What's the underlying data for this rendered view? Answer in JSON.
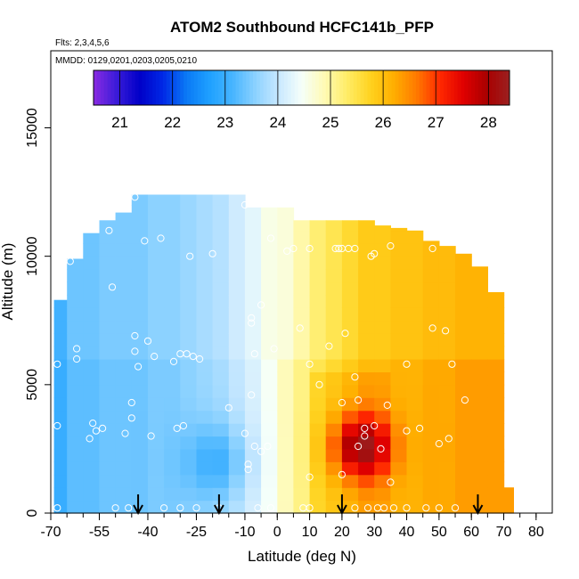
{
  "chart_data": {
    "type": "heatmap",
    "title": "ATOM2 Southbound HCFC141b_PFP",
    "subtitle_flights": "Flts: 2,3,4,5,6",
    "subtitle_dates": "MMDD: 0129,0201,0203,0205,0210",
    "xlabel": "Latitude (deg N)",
    "ylabel": "Altitude (m)",
    "xlim": [
      -70,
      85
    ],
    "ylim": [
      0,
      18000
    ],
    "x_ticks": [
      -70,
      -55,
      -40,
      -25,
      -10,
      0,
      10,
      20,
      30,
      40,
      50,
      60,
      70,
      80
    ],
    "y_ticks": [
      0,
      5000,
      10000,
      15000
    ],
    "colorbar": {
      "min": 20.5,
      "max": 28.4,
      "ticks": [
        21,
        22,
        23,
        24,
        25,
        26,
        27,
        28
      ],
      "colors": [
        "#8a2be2",
        "#3a1bd9",
        "#0000c8",
        "#0028e6",
        "#0a78f5",
        "#1ea0ff",
        "#46b4ff",
        "#8cd2ff",
        "#c8e8ff",
        "#f5fffa",
        "#fffab4",
        "#ffec64",
        "#ffd21e",
        "#ffae00",
        "#ff7800",
        "#ff2800",
        "#e00000",
        "#aa0000",
        "#9b2020"
      ]
    },
    "field_columns": [
      {
        "lat": -66.5,
        "top": 8300,
        "v": 23.0
      },
      {
        "lat": -62.5,
        "top": 9900,
        "v": 23.3
      },
      {
        "lat": -57.5,
        "top": 10900,
        "v": 23.3
      },
      {
        "lat": -52.5,
        "top": 11400,
        "v": 23.4
      },
      {
        "lat": -47.5,
        "top": 11700,
        "v": 23.4
      },
      {
        "lat": -42.5,
        "top": 12400,
        "v": 23.4
      },
      {
        "lat": -37.5,
        "top": 12400,
        "v": 23.5
      },
      {
        "lat": -32.5,
        "top": 12400,
        "v": 23.5
      },
      {
        "lat": -27.5,
        "top": 12400,
        "v": 23.6
      },
      {
        "lat": -22.5,
        "top": 12400,
        "v": 23.7
      },
      {
        "lat": -17.5,
        "top": 12400,
        "v": 23.8
      },
      {
        "lat": -12.5,
        "top": 12400,
        "v": 24.0
      },
      {
        "lat": -7.5,
        "top": 11900,
        "v": 24.2
      },
      {
        "lat": -2.5,
        "top": 11900,
        "v": 24.5
      },
      {
        "lat": 2.5,
        "top": 11900,
        "v": 24.8
      },
      {
        "lat": 7.5,
        "top": 11400,
        "v": 25.1
      },
      {
        "lat": 12.5,
        "top": 11400,
        "v": 25.4
      },
      {
        "lat": 17.5,
        "top": 11400,
        "v": 25.6
      },
      {
        "lat": 22.5,
        "top": 11400,
        "v": 25.8
      },
      {
        "lat": 27.5,
        "top": 11400,
        "v": 26.0
      },
      {
        "lat": 32.5,
        "top": 11200,
        "v": 26.0
      },
      {
        "lat": 37.5,
        "top": 11100,
        "v": 26.1
      },
      {
        "lat": 42.5,
        "top": 11000,
        "v": 26.1
      },
      {
        "lat": 47.5,
        "top": 10600,
        "v": 26.2
      },
      {
        "lat": 52.5,
        "top": 10400,
        "v": 26.2
      },
      {
        "lat": 57.5,
        "top": 10100,
        "v": 26.3
      },
      {
        "lat": 62.5,
        "top": 9600,
        "v": 26.3
      },
      {
        "lat": 67.5,
        "top": 8600,
        "v": 26.3
      },
      {
        "lat": 71.5,
        "top": 1000,
        "v": 26.3
      }
    ],
    "hotspot": {
      "lat": 26,
      "alt": 2600,
      "peak": 28.1
    },
    "coldspot": {
      "lat": -18,
      "alt": 2000,
      "min": 22.6
    },
    "samples": [
      [
        -68,
        200
      ],
      [
        -68,
        3400
      ],
      [
        -68,
        5800
      ],
      [
        -64,
        9800
      ],
      [
        -62,
        6400
      ],
      [
        -62,
        6000
      ],
      [
        -58,
        2900
      ],
      [
        -57,
        3500
      ],
      [
        -56,
        3200
      ],
      [
        -54,
        3300
      ],
      [
        -52,
        11000
      ],
      [
        -51,
        8800
      ],
      [
        -50,
        200
      ],
      [
        -47,
        3100
      ],
      [
        -46,
        200
      ],
      [
        -45,
        3700
      ],
      [
        -45,
        4300
      ],
      [
        -44,
        6300
      ],
      [
        -44,
        6900
      ],
      [
        -44,
        12300
      ],
      [
        -43,
        5700
      ],
      [
        -41,
        10600
      ],
      [
        -40,
        6700
      ],
      [
        -39,
        3000
      ],
      [
        -38,
        6100
      ],
      [
        -36,
        10700
      ],
      [
        -35,
        200
      ],
      [
        -32,
        5900
      ],
      [
        -31,
        3300
      ],
      [
        -30,
        6200
      ],
      [
        -30,
        200
      ],
      [
        -29,
        3400
      ],
      [
        -28,
        6200
      ],
      [
        -27,
        10000
      ],
      [
        -26,
        6100
      ],
      [
        -25,
        200
      ],
      [
        -24,
        6000
      ],
      [
        -20,
        10100
      ],
      [
        -18,
        200
      ],
      [
        -15,
        4100
      ],
      [
        -10,
        12000
      ],
      [
        -10,
        3100
      ],
      [
        -9,
        1900
      ],
      [
        -9,
        1700
      ],
      [
        -8,
        4600
      ],
      [
        -8,
        7600
      ],
      [
        -8,
        7400
      ],
      [
        -7,
        6200
      ],
      [
        -7,
        2600
      ],
      [
        -6,
        200
      ],
      [
        -5,
        8100
      ],
      [
        -5,
        2400
      ],
      [
        -3,
        2600
      ],
      [
        -2,
        200
      ],
      [
        -2,
        10700
      ],
      [
        -1,
        6400
      ],
      [
        3,
        10200
      ],
      [
        5,
        10300
      ],
      [
        7,
        7200
      ],
      [
        8,
        200
      ],
      [
        10,
        200
      ],
      [
        10,
        1400
      ],
      [
        10,
        10300
      ],
      [
        10,
        5800
      ],
      [
        13,
        5000
      ],
      [
        16,
        6500
      ],
      [
        18,
        10300
      ],
      [
        19,
        10300
      ],
      [
        20,
        4300
      ],
      [
        20,
        1500
      ],
      [
        20,
        10300
      ],
      [
        21,
        7000
      ],
      [
        22,
        10300
      ],
      [
        24,
        200
      ],
      [
        24,
        10300
      ],
      [
        24,
        5300
      ],
      [
        25,
        4400
      ],
      [
        25,
        2600
      ],
      [
        27,
        3000
      ],
      [
        27,
        3300
      ],
      [
        28,
        200
      ],
      [
        29,
        10000
      ],
      [
        30,
        3400
      ],
      [
        30,
        10100
      ],
      [
        31,
        200
      ],
      [
        32,
        2500
      ],
      [
        33,
        200
      ],
      [
        34,
        4200
      ],
      [
        35,
        1200
      ],
      [
        35,
        10400
      ],
      [
        36,
        200
      ],
      [
        40,
        5800
      ],
      [
        40,
        3200
      ],
      [
        40,
        200
      ],
      [
        44,
        3300
      ],
      [
        46,
        200
      ],
      [
        48,
        7200
      ],
      [
        48,
        10300
      ],
      [
        50,
        2700
      ],
      [
        50,
        200
      ],
      [
        52,
        7100
      ],
      [
        53,
        2900
      ],
      [
        54,
        5800
      ],
      [
        55,
        200
      ],
      [
        58,
        4400
      ]
    ],
    "flight_arrows": [
      -43,
      -18,
      20,
      62
    ]
  }
}
